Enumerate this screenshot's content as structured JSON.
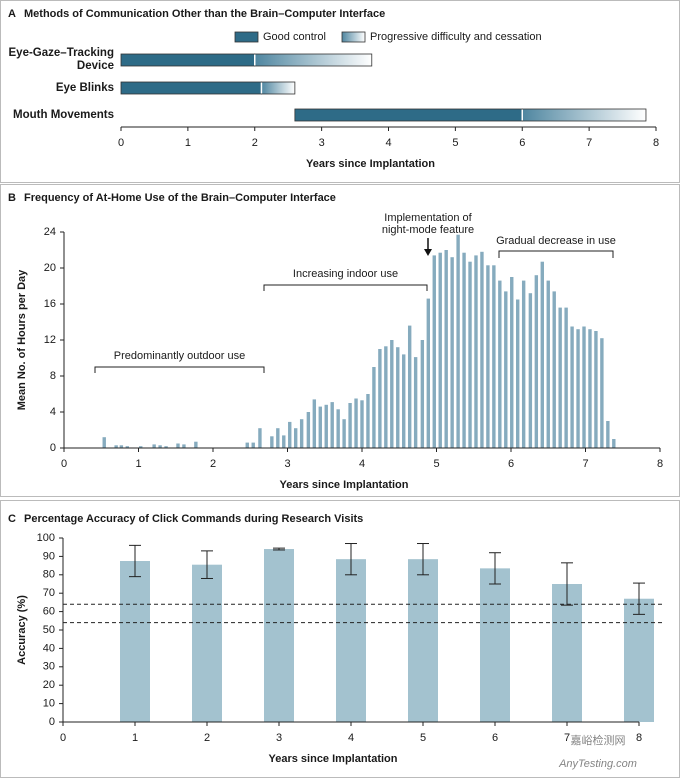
{
  "chart_data": [
    {
      "type": "range-bar",
      "label": "A",
      "title": "Methods of Communication Other than the Brain–Computer Interface",
      "categories": [
        "Eye-Gaze–Tracking Device",
        "Eye Blinks",
        "Mouth Movements"
      ],
      "series": [
        {
          "name": "Good control",
          "color": "#2e6b87",
          "values": [
            [
              0,
              2
            ],
            [
              0,
              2.1
            ],
            [
              2.6,
              6
            ]
          ]
        },
        {
          "name": "Progressive difficulty and cessation",
          "color": "#4f86a0",
          "values": [
            [
              2,
              3.75
            ],
            [
              2.1,
              2.6
            ],
            [
              6,
              7.85
            ]
          ]
        }
      ],
      "xlabel": "Years since Implantation",
      "xlim": [
        0,
        8
      ],
      "xticks": [
        0,
        1,
        2,
        3,
        4,
        5,
        6,
        7,
        8
      ]
    },
    {
      "type": "bar",
      "label": "B",
      "title": "Frequency of At-Home Use of the Brain–Computer Interface",
      "x": [
        0.54,
        0.7,
        0.77,
        0.85,
        1.03,
        1.21,
        1.29,
        1.37,
        1.53,
        1.61,
        1.77,
        2.46,
        2.54,
        2.63,
        2.79,
        2.87,
        2.95,
        3.03,
        3.11,
        3.19,
        3.28,
        3.36,
        3.44,
        3.52,
        3.6,
        3.68,
        3.76,
        3.84,
        3.92,
        4.0,
        4.08,
        4.16,
        4.24,
        4.32,
        4.4,
        4.48,
        4.56,
        4.64,
        4.72,
        4.81,
        4.89,
        4.97,
        5.05,
        5.13,
        5.21,
        5.29,
        5.37,
        5.45,
        5.53,
        5.61,
        5.69,
        5.77,
        5.85,
        5.93,
        6.01,
        6.09,
        6.17,
        6.26,
        6.34,
        6.42,
        6.5,
        6.58,
        6.66,
        6.74,
        6.82,
        6.9,
        6.98,
        7.06,
        7.14,
        7.22,
        7.3,
        7.38
      ],
      "values": [
        1.2,
        0.3,
        0.3,
        0.2,
        0.2,
        0.4,
        0.3,
        0.2,
        0.5,
        0.4,
        0.7,
        0.6,
        0.6,
        2.2,
        1.3,
        2.2,
        1.4,
        2.9,
        2.2,
        3.2,
        4.0,
        5.4,
        4.6,
        4.8,
        5.1,
        4.3,
        3.2,
        5.0,
        5.5,
        5.3,
        6.0,
        9.0,
        11.0,
        11.3,
        12.0,
        11.2,
        10.4,
        13.6,
        10.1,
        12.0,
        16.6,
        21.4,
        21.7,
        22.0,
        21.2,
        23.7,
        21.7,
        20.7,
        21.4,
        21.8,
        20.3,
        20.3,
        18.6,
        17.4,
        19.0,
        16.5,
        18.6,
        17.2,
        19.2,
        20.7,
        18.6,
        17.4,
        15.6,
        15.6,
        13.5,
        13.2,
        13.5,
        13.2,
        13.0,
        12.2,
        3.0,
        1.0
      ],
      "color": "#86abbe",
      "xlabel": "Years since Implantation",
      "ylabel": "Mean No. of Hours per Day",
      "xlim": [
        0,
        8
      ],
      "xticks": [
        0,
        1,
        2,
        3,
        4,
        5,
        6,
        7,
        8
      ],
      "ylim": [
        0,
        24
      ],
      "yticks": [
        0,
        4,
        8,
        12,
        16,
        20,
        24
      ],
      "annotations": [
        "Predominantly outdoor use",
        "Increasing indoor use",
        "Gradual decrease in use"
      ],
      "arrow_note": [
        "Implementation of",
        "night-mode feature"
      ]
    },
    {
      "type": "bar",
      "label": "C",
      "title": "Percentage Accuracy of Click Commands during Research Visits",
      "x": [
        1,
        2,
        3,
        4,
        5,
        6,
        7,
        8
      ],
      "values": [
        87.5,
        85.5,
        94,
        88.5,
        88.5,
        83.5,
        75,
        67
      ],
      "errors": [
        8.5,
        7.5,
        0.5,
        8.5,
        8.5,
        8.5,
        11.5,
        8.5
      ],
      "color": "#a3c2cf",
      "xlabel": "Years since Implantation",
      "ylabel": "Accuracy (%)",
      "xlim": [
        0,
        8
      ],
      "xticks": [
        0,
        1,
        2,
        3,
        4,
        5,
        6,
        7,
        8
      ],
      "ylim": [
        0,
        100
      ],
      "yticks": [
        0,
        10,
        20,
        30,
        40,
        50,
        60,
        70,
        80,
        90,
        100
      ],
      "hlines": [
        64,
        54
      ]
    }
  ],
  "watermark": [
    "嘉峪检测网",
    "AnyTesting.com"
  ]
}
